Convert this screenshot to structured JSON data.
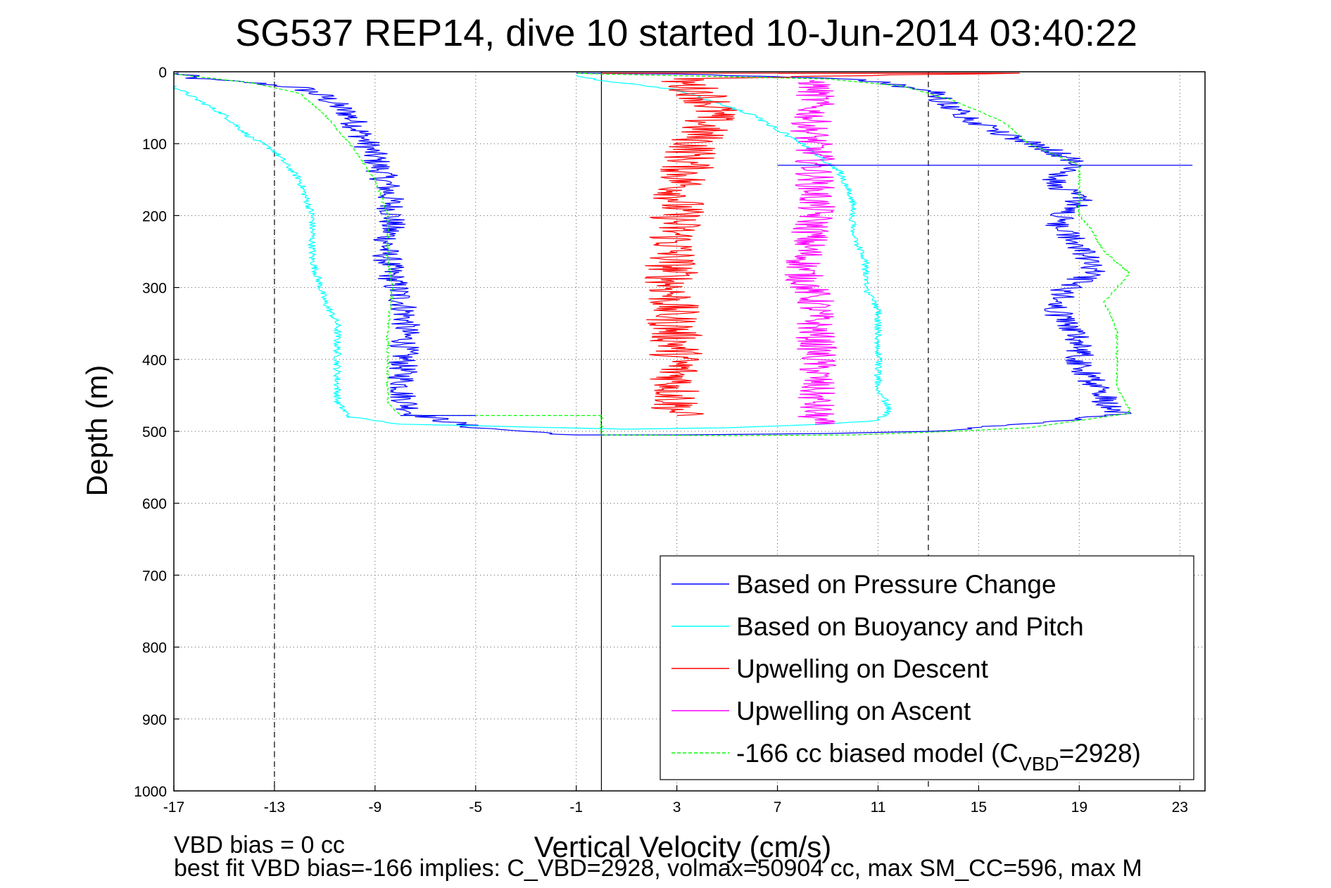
{
  "chart_data": {
    "type": "line",
    "title": "SG537 REP14, dive 10 started 10-Jun-2014 03:40:22",
    "xlabel": "Vertical Velocity (cm/s)",
    "ylabel": "Depth (m)",
    "xlim": [
      -17,
      24
    ],
    "ylim": [
      0,
      1000
    ],
    "y_reversed": true,
    "grid": "dotted",
    "x_ticks": [
      "-17",
      "-13",
      "-9",
      "-5",
      "-1",
      "3",
      "7",
      "11",
      "15",
      "19",
      "23"
    ],
    "y_ticks": [
      "0",
      "100",
      "200",
      "300",
      "400",
      "500",
      "600",
      "700",
      "800",
      "900",
      "1000"
    ],
    "reference_lines": [
      {
        "x": -13,
        "style": "dashed"
      },
      {
        "x": 0,
        "style": "solid"
      },
      {
        "x": 13,
        "style": "dashed"
      }
    ],
    "legend_position": "bottom-right",
    "legend": [
      {
        "label_parts": [
          "Based on Pressure Change"
        ],
        "color": "#0000ff",
        "dash": false
      },
      {
        "label_parts": [
          "Based on Buoyancy and Pitch"
        ],
        "color": "#00ffff",
        "dash": false
      },
      {
        "label_parts": [
          "Upwelling on Descent"
        ],
        "color": "#ff0000",
        "dash": false
      },
      {
        "label_parts": [
          "Upwelling on Ascent"
        ],
        "color": "#ff00ff",
        "dash": false
      },
      {
        "label_parts": [
          "-166 cc biased model (C",
          "VBD",
          "=2928)"
        ],
        "color": "#00ff00",
        "dash": true
      }
    ],
    "series": [
      {
        "name": "Based on Pressure Change",
        "color": "#0000ff",
        "noise": 0.6,
        "points": [
          [
            -17,
            2
          ],
          [
            -16,
            10
          ],
          [
            -14,
            15
          ],
          [
            -12,
            22
          ],
          [
            -11,
            35
          ],
          [
            -10,
            60
          ],
          [
            -9.5,
            90
          ],
          [
            -9,
            120
          ],
          [
            -8.5,
            160
          ],
          [
            -8.3,
            200
          ],
          [
            -8.6,
            250
          ],
          [
            -8.3,
            290
          ],
          [
            -7.8,
            330
          ],
          [
            -7.8,
            370
          ],
          [
            -7.9,
            410
          ],
          [
            -7.9,
            450
          ],
          [
            -7.5,
            475
          ],
          [
            -5,
            495
          ],
          [
            -1,
            505
          ],
          [
            3,
            505
          ],
          [
            9,
            503
          ],
          [
            13,
            500
          ],
          [
            16,
            492
          ],
          [
            18,
            486
          ],
          [
            20.5,
            475
          ],
          [
            20,
            455
          ],
          [
            19.5,
            430
          ],
          [
            19,
            400
          ],
          [
            19,
            370
          ],
          [
            18,
            330
          ],
          [
            18.5,
            300
          ],
          [
            19.5,
            280
          ],
          [
            19,
            240
          ],
          [
            18,
            210
          ],
          [
            19,
            180
          ],
          [
            18,
            150
          ],
          [
            19,
            130
          ],
          [
            18,
            110
          ],
          [
            15.5,
            80
          ],
          [
            14,
            50
          ],
          [
            13,
            25
          ],
          [
            10,
            10
          ],
          [
            3,
            3
          ],
          [
            -1,
            2
          ]
        ]
      },
      {
        "name": "Based on Buoyancy and Pitch",
        "color": "#00ffff",
        "noise": 0.15,
        "points": [
          [
            -17,
            20
          ],
          [
            -16,
            40
          ],
          [
            -15,
            60
          ],
          [
            -14,
            90
          ],
          [
            -13,
            110
          ],
          [
            -12,
            150
          ],
          [
            -11.5,
            200
          ],
          [
            -11.5,
            260
          ],
          [
            -11,
            320
          ],
          [
            -10.5,
            350
          ],
          [
            -10.5,
            400
          ],
          [
            -10.5,
            460
          ],
          [
            -10,
            480
          ],
          [
            -8,
            490
          ],
          [
            -3,
            494
          ],
          [
            1,
            497
          ],
          [
            5,
            495
          ],
          [
            9,
            490
          ],
          [
            11,
            485
          ],
          [
            11.5,
            470
          ],
          [
            11,
            440
          ],
          [
            11,
            400
          ],
          [
            11,
            360
          ],
          [
            11,
            330
          ],
          [
            10.5,
            300
          ],
          [
            10.5,
            260
          ],
          [
            10,
            230
          ],
          [
            10,
            180
          ],
          [
            9.5,
            140
          ],
          [
            8,
            100
          ],
          [
            6,
            60
          ],
          [
            3,
            25
          ],
          [
            0,
            12
          ],
          [
            -1,
            5
          ]
        ]
      },
      {
        "name": "Upwelling on Descent",
        "color": "#ff0000",
        "noise": 1.1,
        "points": [
          [
            0,
            2
          ],
          [
            16,
            2
          ],
          [
            3,
            10
          ],
          [
            4,
            30
          ],
          [
            4.5,
            50
          ],
          [
            4,
            80
          ],
          [
            3.5,
            120
          ],
          [
            3.2,
            160
          ],
          [
            3,
            200
          ],
          [
            2.8,
            260
          ],
          [
            2.8,
            300
          ],
          [
            2.8,
            340
          ],
          [
            3,
            380
          ],
          [
            3,
            420
          ],
          [
            3,
            460
          ],
          [
            3,
            478
          ]
        ]
      },
      {
        "name": "Upwelling on Ascent",
        "color": "#ff00ff",
        "noise": 0.8,
        "points": [
          [
            8.5,
            12
          ],
          [
            8.5,
            40
          ],
          [
            8.3,
            80
          ],
          [
            8.5,
            120
          ],
          [
            8.5,
            160
          ],
          [
            8.5,
            200
          ],
          [
            8.2,
            240
          ],
          [
            8,
            280
          ],
          [
            8.5,
            320
          ],
          [
            8.5,
            360
          ],
          [
            8.6,
            400
          ],
          [
            8.5,
            440
          ],
          [
            8.5,
            470
          ],
          [
            8.5,
            490
          ]
        ]
      },
      {
        "name": "-166 cc biased model (C_VBD=2928)",
        "color": "#00ff00",
        "dash": true,
        "noise": 0.05,
        "points": [
          [
            -17,
            3
          ],
          [
            -14,
            15
          ],
          [
            -12,
            30
          ],
          [
            -11,
            60
          ],
          [
            -10,
            100
          ],
          [
            -9,
            150
          ],
          [
            -8.5,
            200
          ],
          [
            -8.5,
            260
          ],
          [
            -8.3,
            300
          ],
          [
            -8.5,
            360
          ],
          [
            -8.5,
            420
          ],
          [
            -8.5,
            460
          ],
          [
            -8,
            478
          ],
          [
            0,
            478
          ],
          [
            0,
            505
          ],
          [
            5,
            506
          ],
          [
            10,
            505
          ],
          [
            14,
            500
          ],
          [
            17,
            495
          ],
          [
            19,
            485
          ],
          [
            21,
            475
          ],
          [
            21,
            470
          ],
          [
            20.5,
            440
          ],
          [
            20.5,
            400
          ],
          [
            20.5,
            360
          ],
          [
            20,
            320
          ],
          [
            20.5,
            300
          ],
          [
            21,
            280
          ],
          [
            20,
            250
          ],
          [
            19.5,
            220
          ],
          [
            19,
            200
          ],
          [
            19,
            170
          ],
          [
            19,
            130
          ],
          [
            17,
            100
          ],
          [
            16,
            70
          ],
          [
            14,
            40
          ],
          [
            12,
            20
          ],
          [
            9,
            10
          ],
          [
            0,
            3
          ],
          [
            -1,
            2
          ]
        ]
      }
    ],
    "spikes": [
      {
        "color": "#0000ff",
        "x1": 7,
        "x2": 23.5,
        "depth": 130
      },
      {
        "color": "#0000ff",
        "x1": -8,
        "x2": -5,
        "depth": 478
      },
      {
        "color": "#ff0000",
        "x1": 7,
        "x2": 16,
        "depth": 2
      }
    ]
  },
  "footer": {
    "line1": "VBD bias = 0 cc",
    "line2": "best fit VBD bias=-166 implies: C_VBD=2928, volmax=50904 cc, max SM_CC=596, max M"
  }
}
